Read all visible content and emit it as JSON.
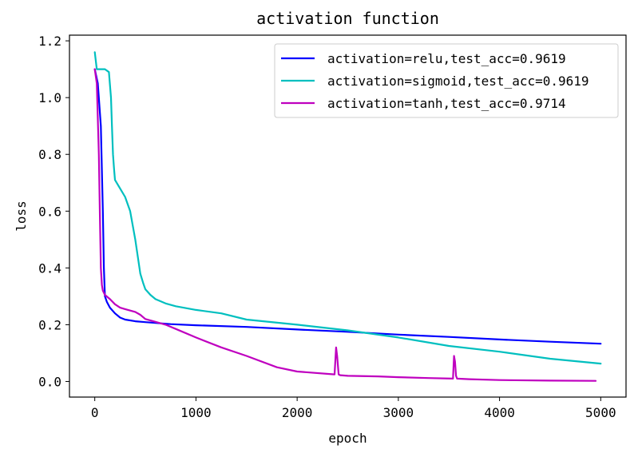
{
  "chart_data": {
    "type": "line",
    "title": "activation function",
    "xlabel": "epoch",
    "ylabel": "loss",
    "xlim": [
      -250,
      5250
    ],
    "ylim": [
      -0.055,
      1.22
    ],
    "xticks": [
      0,
      1000,
      2000,
      3000,
      4000,
      5000
    ],
    "xtick_labels": [
      "0",
      "1000",
      "2000",
      "3000",
      "4000",
      "5000"
    ],
    "yticks": [
      0.0,
      0.2,
      0.4,
      0.6,
      0.8,
      1.0,
      1.2
    ],
    "ytick_labels": [
      "0.0",
      "0.2",
      "0.4",
      "0.6",
      "0.8",
      "1.0",
      "1.2"
    ],
    "grid": false,
    "legend_position": "top-right",
    "series": [
      {
        "name": "activation=relu,test_acc=0.9619",
        "color": "#0000ff",
        "x": [
          0,
          30,
          60,
          80,
          90,
          100,
          120,
          150,
          200,
          250,
          300,
          400,
          500,
          750,
          1000,
          1500,
          2000,
          2500,
          3000,
          3500,
          4000,
          4500,
          5000
        ],
        "y": [
          1.1,
          1.05,
          0.9,
          0.6,
          0.4,
          0.3,
          0.28,
          0.26,
          0.24,
          0.225,
          0.218,
          0.212,
          0.209,
          0.202,
          0.198,
          0.192,
          0.183,
          0.175,
          0.165,
          0.157,
          0.148,
          0.14,
          0.133
        ]
      },
      {
        "name": "activation=sigmoid,test_acc=0.9619",
        "color": "#00bfbf",
        "x": [
          0,
          20,
          50,
          100,
          140,
          160,
          170,
          180,
          190,
          200,
          250,
          300,
          350,
          400,
          450,
          480,
          500,
          550,
          600,
          700,
          800,
          1000,
          1250,
          1500,
          2000,
          2500,
          3000,
          3500,
          4000,
          4500,
          5000
        ],
        "y": [
          1.16,
          1.1,
          1.1,
          1.1,
          1.09,
          1.0,
          0.9,
          0.8,
          0.75,
          0.71,
          0.68,
          0.65,
          0.6,
          0.5,
          0.38,
          0.345,
          0.325,
          0.305,
          0.29,
          0.275,
          0.265,
          0.252,
          0.24,
          0.218,
          0.2,
          0.18,
          0.155,
          0.125,
          0.105,
          0.08,
          0.063
        ]
      },
      {
        "name": "activation=tanh,test_acc=0.9714",
        "color": "#bf00bf",
        "x": [
          0,
          20,
          40,
          50,
          60,
          70,
          80,
          100,
          150,
          200,
          250,
          300,
          400,
          450,
          500,
          600,
          700,
          800,
          1000,
          1250,
          1500,
          1800,
          2000,
          2370,
          2385,
          2395,
          2410,
          2425,
          2500,
          2800,
          3000,
          3300,
          3540,
          3550,
          3560,
          3570,
          3580,
          3700,
          4000,
          4500,
          4950
        ],
        "y": [
          1.1,
          1.05,
          0.8,
          0.6,
          0.4,
          0.34,
          0.32,
          0.305,
          0.29,
          0.272,
          0.26,
          0.255,
          0.245,
          0.235,
          0.22,
          0.21,
          0.2,
          0.185,
          0.155,
          0.12,
          0.09,
          0.05,
          0.035,
          0.025,
          0.12,
          0.09,
          0.025,
          0.022,
          0.02,
          0.018,
          0.015,
          0.012,
          0.01,
          0.09,
          0.07,
          0.02,
          0.01,
          0.008,
          0.005,
          0.003,
          0.002
        ]
      }
    ]
  }
}
